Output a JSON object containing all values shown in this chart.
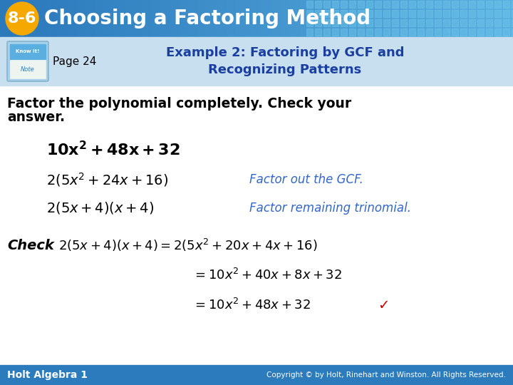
{
  "title_badge": "8-6",
  "title_text": "Choosing a Factoring Method",
  "title_badge_color": "#F5A800",
  "header_bg": "#3B8FCC",
  "header_grid_color": "#5BBCE4",
  "subheader_bg": "#D6E8F5",
  "page_label": "Page 24",
  "example_title_line1": "Example 2: Factoring by GCF and",
  "example_title_line2": "Recognizing Patterns",
  "example_title_color": "#1A3FA0",
  "instruction_line1": "Factor the polynomial completely. Check your",
  "instruction_line2": "answer.",
  "note_color": "#3366CC",
  "footer_bg": "#2B7BBD",
  "footer_left": "Holt Algebra 1",
  "footer_right": "Copyright © by Holt, Rinehart and Winston. All Rights Reserved.",
  "background_color": "#FFFFFF",
  "check_color": "#CC0000",
  "know_it_bg": "#4EA8D8",
  "know_it_dark": "#2176A0"
}
